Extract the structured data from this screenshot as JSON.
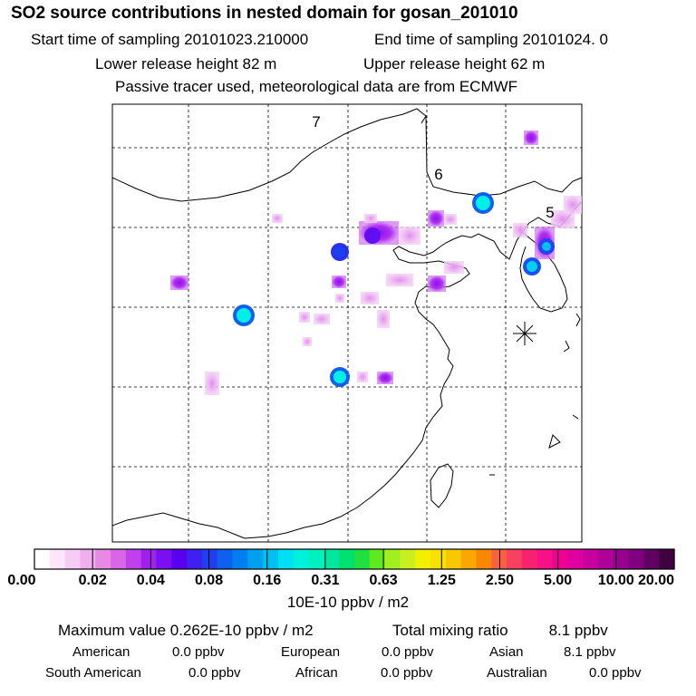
{
  "header": {
    "title": "SO2 source contributions in nested domain for gosan_201010",
    "start": "Start time of sampling 20101023.210000",
    "end": "End time of sampling 20101024.     0",
    "lower": "Lower release height   82 m",
    "upper": "Upper release height   62 m",
    "note": "Passive tracer used, meteorological data are from ECMWF"
  },
  "map": {
    "labels": [
      "7",
      "6",
      "5"
    ],
    "receptor_marker": "asterisk-icon"
  },
  "colorbar": {
    "ticks": [
      "0.00",
      "0.02",
      "0.04",
      "0.08",
      "0.16",
      "0.31",
      "0.63",
      "1.25",
      "2.50",
      "5.00",
      "10.00",
      "20.00"
    ],
    "unit": "10E-10 ppbv / m2",
    "colors": [
      "#ffffff",
      "#fbe6fb",
      "#f6ccf6",
      "#f0b0f0",
      "#e68ae6",
      "#d866e6",
      "#c040ee",
      "#a020f0",
      "#7a10f0",
      "#5a00f0",
      "#4020f0",
      "#2040f0",
      "#1060f0",
      "#0080f0",
      "#00a0f0",
      "#00c0f0",
      "#00e0f0",
      "#00f0e0",
      "#00f0c0",
      "#00e8a0",
      "#00e070",
      "#20e040",
      "#60e820",
      "#a0f020",
      "#c8f020",
      "#f0f000",
      "#f8e000",
      "#f8c800",
      "#f8a800",
      "#f88800",
      "#f86040",
      "#f84060",
      "#f82070",
      "#f8108a",
      "#f00090",
      "#e000a0",
      "#c800a0",
      "#b0009a",
      "#980090",
      "#800080",
      "#600060",
      "#400040"
    ]
  },
  "summary": {
    "max_label": "Maximum value  0.262E-10 ppbv / m2",
    "total_label": "Total mixing ratio",
    "total_value": "8.1 ppbv",
    "american_label": "American",
    "american_value": "0.0 ppbv",
    "european_label": "European",
    "european_value": "0.0 ppbv",
    "asian_label": "Asian",
    "asian_value": "8.1 ppbv",
    "south_american_label": "South American",
    "south_american_value": "0.0 ppbv",
    "african_label": "African",
    "african_value": "0.0 ppbv",
    "australian_label": "Australian",
    "australian_value": "0.0 ppbv"
  }
}
